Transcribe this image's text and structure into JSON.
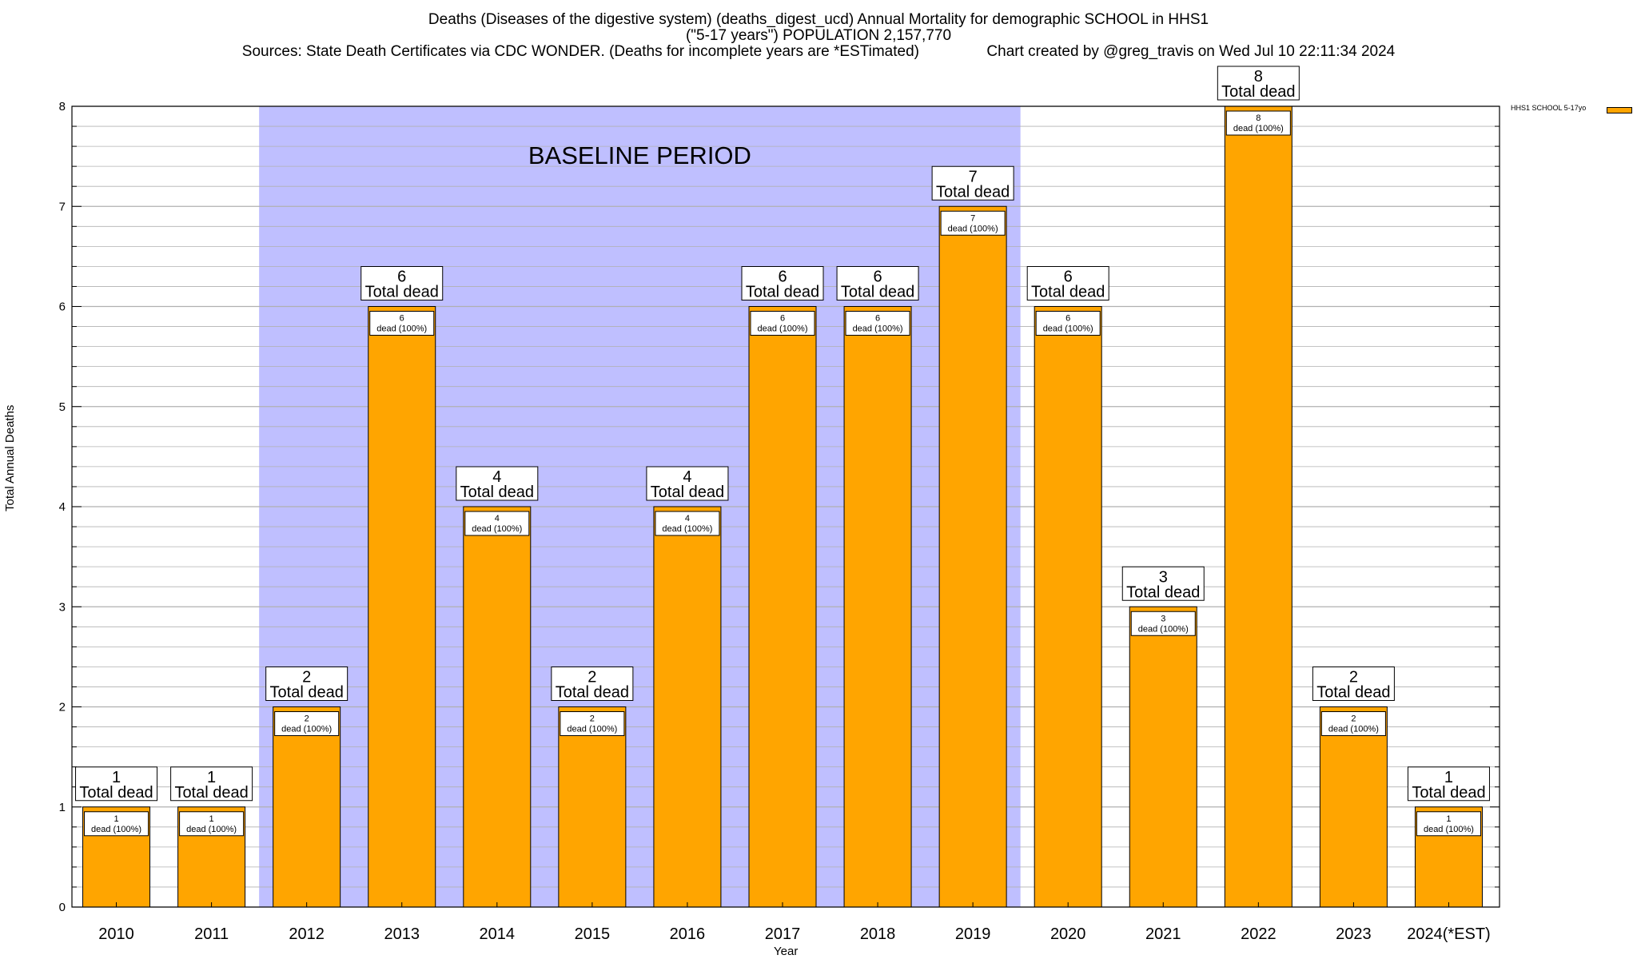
{
  "title": {
    "line1": "Deaths (Diseases of the digestive system) (deaths_digest_ucd) Annual Mortality for demographic SCHOOL in HHS1",
    "line2": "(\"5-17 years\") POPULATION 2,157,770",
    "line3": "Sources: State Death Certificates via CDC WONDER. (Deaths for incomplete years are *ESTimated)                Chart created by @greg_travis on Wed Jul 10 22:11:34 2024"
  },
  "colors": {
    "bar": "#FFA500",
    "baseline": "#BFBFFF",
    "grid": "#B0B0B0"
  },
  "chart_data": {
    "type": "bar",
    "categories": [
      "2010",
      "2011",
      "2012",
      "2013",
      "2014",
      "2015",
      "2016",
      "2017",
      "2018",
      "2019",
      "2020",
      "2021",
      "2022",
      "2023",
      "2024(*EST)"
    ],
    "series": [
      {
        "name": "HHS1 SCHOOL 5-17yo",
        "values": [
          1,
          1,
          2,
          6,
          4,
          2,
          4,
          6,
          6,
          7,
          6,
          3,
          8,
          2,
          1
        ]
      }
    ],
    "xlabel": "Year",
    "ylabel": "Total Annual Deaths",
    "ylim": [
      0,
      8
    ],
    "yticks": [
      0,
      1,
      2,
      3,
      4,
      5,
      6,
      7,
      8
    ],
    "grid": true,
    "legend": "top-right",
    "bar_label_top": "Total dead",
    "bar_label_inner": "dead (100%)",
    "annotation": {
      "text": "BASELINE PERIOD",
      "from": "2012",
      "to": "2019"
    }
  }
}
